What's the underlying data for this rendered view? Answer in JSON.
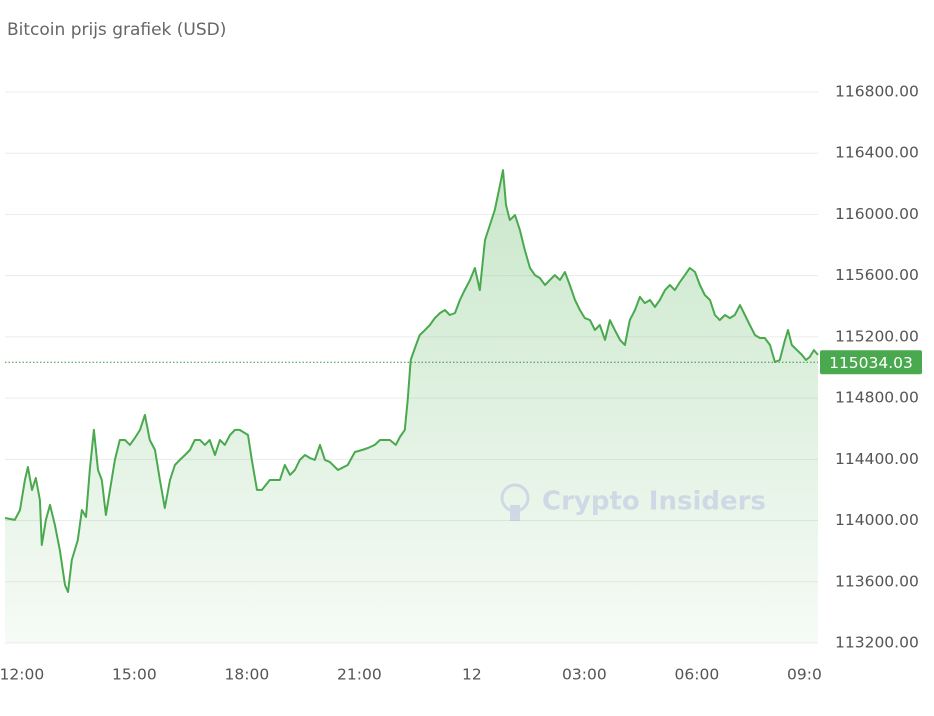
{
  "chart_data": {
    "type": "area-line",
    "title": "Bitcoin prijs grafiek (USD)",
    "watermark": "Crypto Insiders",
    "color": "#4aa94e",
    "last_value": 115034.03,
    "grid": true,
    "xlim": [
      -0.45,
      21.23
    ],
    "ylim": [
      113200,
      116800
    ],
    "xticks": [
      {
        "value": 0,
        "label": "12:00"
      },
      {
        "value": 3,
        "label": "15:00"
      },
      {
        "value": 6,
        "label": "18:00"
      },
      {
        "value": 9,
        "label": "21:00"
      },
      12,
      {
        "value": 15,
        "label": "03:00"
      },
      {
        "value": 18,
        "label": "06:00"
      },
      {
        "value": 21,
        "label": "09:00"
      }
    ],
    "yticks": [
      {
        "value": 113200,
        "label": "113200.00"
      },
      {
        "value": 113600,
        "label": "113600.00"
      },
      {
        "value": 114000,
        "label": "114000.00"
      },
      {
        "value": 114400,
        "label": "114400.00"
      },
      {
        "value": 114800,
        "label": "114800.00"
      },
      {
        "value": 115200,
        "label": "115200.00"
      },
      {
        "value": 115600,
        "label": "115600.00"
      },
      {
        "value": 116000,
        "label": "116000.00"
      },
      {
        "value": 116400,
        "label": "116400.00"
      },
      {
        "value": 116800,
        "label": "116800.00"
      }
    ],
    "x": [
      -0.45,
      -0.19,
      -0.05,
      0.08,
      0.16,
      0.27,
      0.37,
      0.48,
      0.53,
      0.64,
      0.75,
      0.88,
      1.01,
      1.15,
      1.23,
      1.33,
      1.49,
      1.6,
      1.71,
      1.81,
      1.92,
      2.03,
      2.13,
      2.24,
      2.35,
      2.48,
      2.61,
      2.75,
      2.88,
      3.01,
      3.15,
      3.28,
      3.41,
      3.55,
      3.68,
      3.81,
      3.95,
      4.08,
      4.21,
      4.35,
      4.48,
      4.61,
      4.75,
      4.88,
      5.01,
      5.15,
      5.28,
      5.41,
      5.55,
      5.68,
      5.81,
      6.03,
      6.13,
      6.27,
      6.4,
      6.61,
      6.88,
      7.01,
      7.15,
      7.28,
      7.41,
      7.55,
      7.68,
      7.81,
      7.95,
      8.08,
      8.21,
      8.43,
      8.53,
      8.69,
      8.88,
      9.07,
      9.23,
      9.41,
      9.55,
      9.81,
      9.97,
      10.08,
      10.21,
      10.29,
      10.37,
      10.51,
      10.61,
      10.75,
      10.88,
      11.01,
      11.15,
      11.28,
      11.41,
      11.55,
      11.68,
      11.81,
      11.95,
      12.08,
      12.21,
      12.35,
      12.48,
      12.61,
      12.75,
      12.83,
      12.91,
      13.01,
      13.15,
      13.28,
      13.41,
      13.55,
      13.68,
      13.81,
      13.95,
      14.08,
      14.21,
      14.35,
      14.48,
      14.61,
      14.75,
      14.88,
      15.01,
      15.15,
      15.28,
      15.41,
      15.55,
      15.68,
      15.81,
      15.95,
      16.08,
      16.21,
      16.35,
      16.48,
      16.61,
      16.75,
      16.88,
      17.01,
      17.15,
      17.28,
      17.41,
      17.55,
      17.68,
      17.81,
      17.95,
      18.08,
      18.21,
      18.35,
      18.48,
      18.61,
      18.75,
      18.88,
      19.01,
      19.15,
      19.28,
      19.41,
      19.55,
      19.68,
      19.81,
      19.95,
      20.08,
      20.21,
      20.35,
      20.43,
      20.53,
      20.67,
      20.8,
      20.91,
      21.01,
      21.12,
      21.23
    ],
    "values": [
      114017,
      114004,
      114069,
      114265,
      114350,
      114200,
      114278,
      114134,
      113840,
      114004,
      114102,
      113971,
      113808,
      113579,
      113533,
      113742,
      113873,
      114069,
      114023,
      114330,
      114592,
      114330,
      114265,
      114036,
      114200,
      114396,
      114526,
      114526,
      114494,
      114539,
      114592,
      114690,
      114526,
      114461,
      114265,
      114082,
      114265,
      114363,
      114396,
      114428,
      114461,
      114526,
      114526,
      114494,
      114526,
      114428,
      114526,
      114494,
      114559,
      114592,
      114592,
      114559,
      114396,
      114200,
      114200,
      114265,
      114265,
      114363,
      114298,
      114330,
      114396,
      114428,
      114409,
      114396,
      114494,
      114396,
      114383,
      114330,
      114343,
      114363,
      114448,
      114461,
      114474,
      114494,
      114526,
      114526,
      114494,
      114546,
      114592,
      114788,
      115049,
      115147,
      115212,
      115245,
      115278,
      115323,
      115356,
      115376,
      115343,
      115356,
      115441,
      115506,
      115572,
      115650,
      115506,
      115833,
      115931,
      116029,
      116192,
      116290,
      116062,
      115964,
      115996,
      115898,
      115768,
      115650,
      115604,
      115585,
      115539,
      115572,
      115604,
      115572,
      115624,
      115539,
      115441,
      115376,
      115323,
      115310,
      115245,
      115278,
      115180,
      115310,
      115245,
      115180,
      115147,
      115310,
      115376,
      115461,
      115421,
      115441,
      115395,
      115441,
      115506,
      115539,
      115506,
      115559,
      115604,
      115650,
      115624,
      115539,
      115474,
      115441,
      115343,
      115310,
      115343,
      115323,
      115343,
      115408,
      115343,
      115278,
      115212,
      115193,
      115193,
      115147,
      115036,
      115049,
      115180,
      115245,
      115147,
      115114,
      115082,
      115049,
      115069,
      115114,
      115082
    ]
  }
}
